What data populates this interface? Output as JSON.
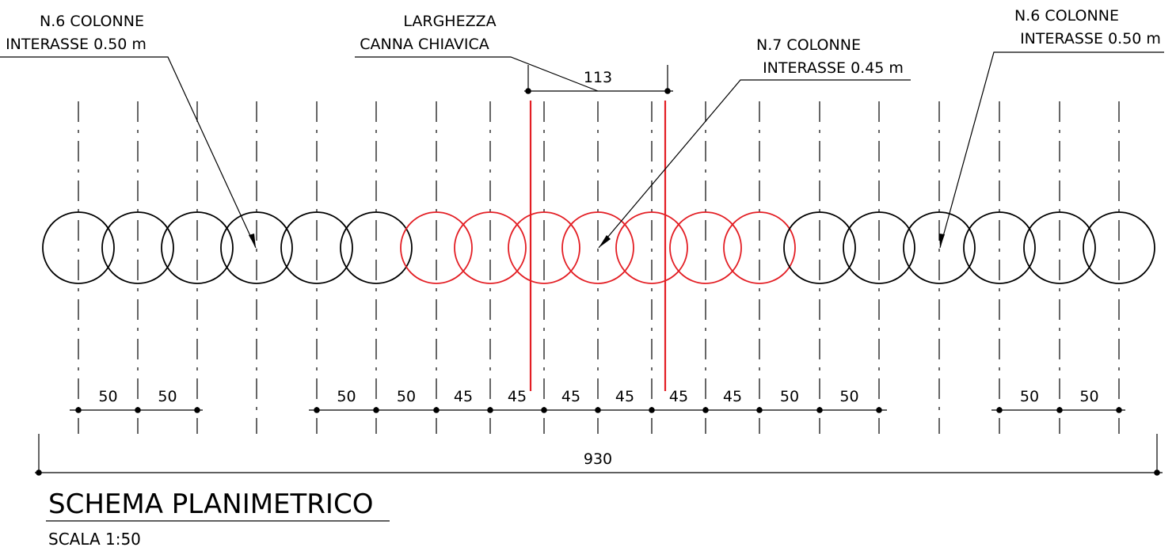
{
  "colors": {
    "line": "#000000",
    "highlight": "#e31e24",
    "background": "#ffffff"
  },
  "labels": {
    "left_group": [
      "N.6 COLONNE",
      "INTERASSE 0.50 m"
    ],
    "culvert": [
      "LARGHEZZA",
      "CANNA CHIAVICA"
    ],
    "center_group": [
      "N.7 COLONNE",
      "INTERASSE 0.45 m"
    ],
    "right_group": [
      "N.6 COLONNE",
      "INTERASSE 0.50 m"
    ]
  },
  "dimensions": {
    "culvert_width": "113",
    "total_length": "930",
    "spacings": [
      {
        "text": "50",
        "span": [
          0,
          1
        ]
      },
      {
        "text": "50",
        "span": [
          1,
          2
        ]
      },
      {
        "text": "50",
        "span": [
          4,
          5
        ]
      },
      {
        "text": "50",
        "span": [
          5,
          6
        ]
      },
      {
        "text": "45",
        "span": [
          6,
          7
        ]
      },
      {
        "text": "45",
        "span": [
          7,
          8
        ]
      },
      {
        "text": "45",
        "span": [
          8,
          9
        ]
      },
      {
        "text": "45",
        "span": [
          9,
          10
        ]
      },
      {
        "text": "45",
        "span": [
          10,
          11
        ]
      },
      {
        "text": "45",
        "span": [
          11,
          12
        ]
      },
      {
        "text": "50",
        "span": [
          12,
          13
        ]
      },
      {
        "text": "50",
        "span": [
          13,
          14
        ]
      },
      {
        "text": "50",
        "span": [
          16,
          17
        ]
      },
      {
        "text": "50",
        "span": [
          17,
          18
        ]
      }
    ]
  },
  "columns": {
    "count": 19,
    "highlighted": [
      6,
      7,
      8,
      9,
      10,
      11,
      12
    ]
  },
  "title": "SCHEMA PLANIMETRICO",
  "scale": "SCALA 1:50"
}
